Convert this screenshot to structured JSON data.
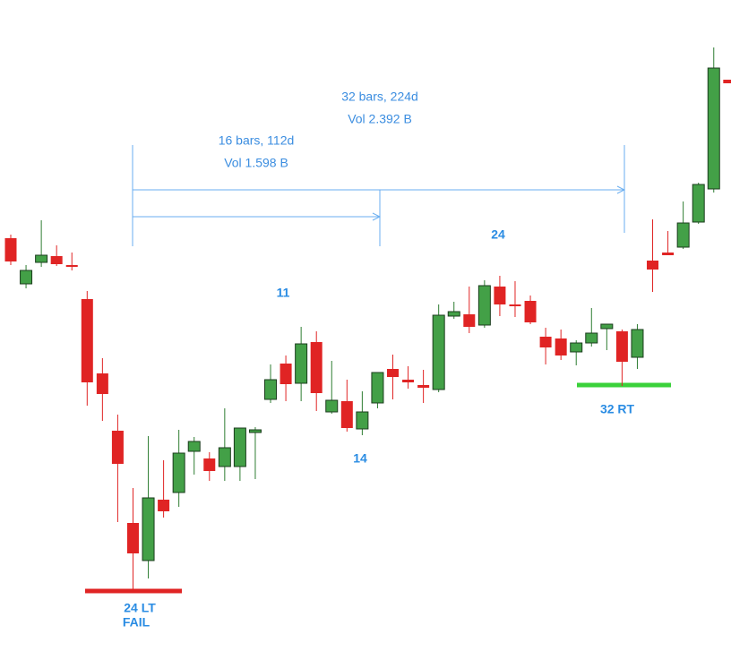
{
  "chart_data": {
    "type": "candlestick",
    "up_color": "#43a047",
    "down_color": "#e02424",
    "ylim": [
      0,
      727
    ],
    "open": [
      461,
      410,
      434,
      441,
      431,
      393,
      310,
      246,
      143,
      101,
      169,
      177,
      223,
      215,
      206,
      206,
      244,
      281,
      321,
      299,
      345,
      267,
      279,
      248,
      277,
      315,
      303,
      297,
      292,
      374,
      376,
      364,
      407,
      387,
      391,
      351,
      349,
      334,
      344,
      360,
      357,
      328,
      436,
      445,
      451,
      479,
      516,
      638
    ],
    "high": [
      465,
      431,
      481,
      453,
      445,
      402,
      327,
      264,
      182,
      240,
      213,
      247,
      239,
      222,
      271,
      249,
      250,
      320,
      330,
      362,
      357,
      324,
      303,
      290,
      311,
      331,
      318,
      314,
      387,
      390,
      407,
      414,
      419,
      413,
      397,
      361,
      359,
      347,
      383,
      365,
      359,
      365,
      482,
      469,
      502,
      523,
      674,
      638
    ],
    "low": [
      431,
      405,
      429,
      430,
      425,
      274,
      257,
      144,
      69,
      81,
      149,
      161,
      197,
      190,
      190,
      190,
      192,
      277,
      279,
      279,
      268,
      265,
      245,
      241,
      271,
      281,
      293,
      277,
      289,
      371,
      355,
      361,
      374,
      373,
      365,
      320,
      325,
      319,
      340,
      336,
      296,
      315,
      401,
      442,
      449,
      477,
      512,
      634
    ],
    "close": [
      435,
      425,
      442,
      432,
      429,
      300,
      287,
      209,
      109,
      171,
      156,
      221,
      234,
      201,
      227,
      249,
      247,
      303,
      298,
      343,
      288,
      280,
      249,
      267,
      311,
      306,
      300,
      294,
      375,
      379,
      362,
      408,
      387,
      385,
      367,
      339,
      330,
      344,
      355,
      365,
      323,
      359,
      426,
      442,
      478,
      521,
      651,
      634
    ],
    "annotations": {
      "range_long": "32 bars, 224d",
      "range_long_vol": "Vol 2.392 B",
      "range_short": "16 bars, 112d",
      "range_short_vol": "Vol 1.598 B",
      "count_11": "11",
      "count_24": "24",
      "count_14": "14",
      "low_label": "24 LT",
      "low_label_2": "FAIL",
      "retest_label": "32 RT"
    }
  }
}
